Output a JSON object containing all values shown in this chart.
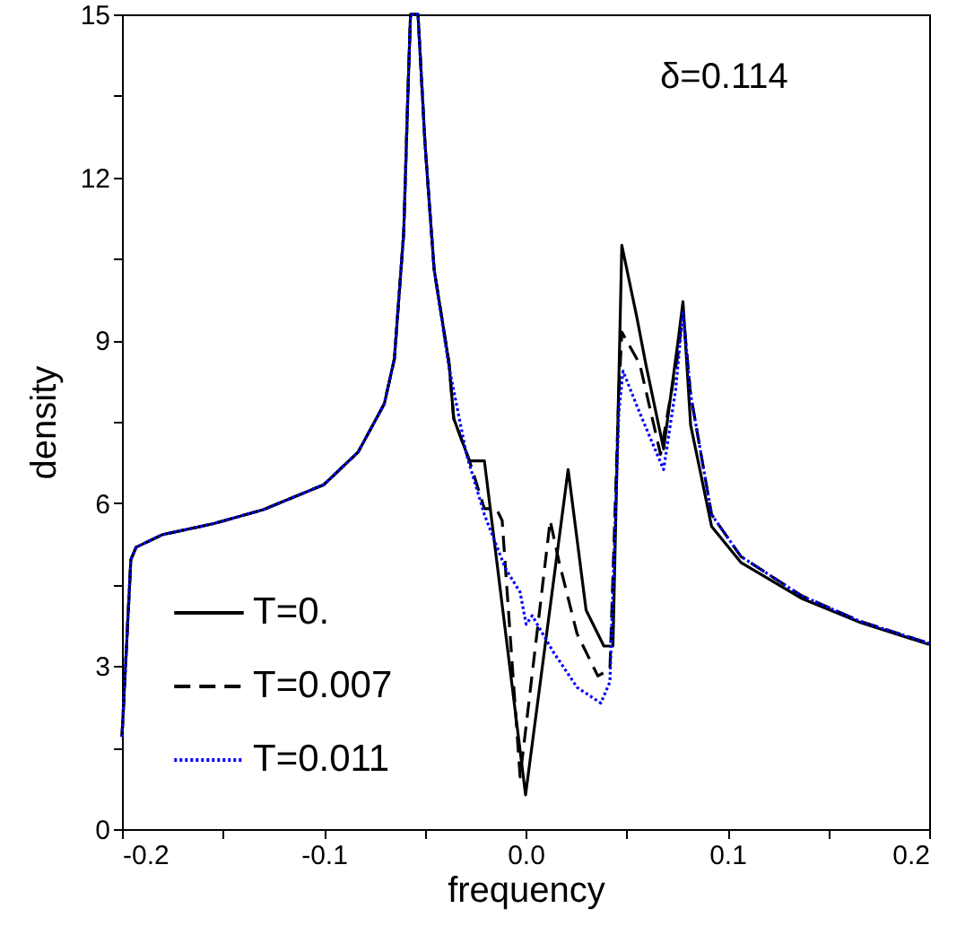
{
  "chart_data": {
    "type": "line",
    "xlabel": "frequency",
    "ylabel": "density",
    "annotations": [
      "δ=0.114"
    ],
    "xlim": [
      -0.2,
      0.2
    ],
    "xticks": [
      -0.2,
      {
        "value": -0.15,
        "label": null
      },
      -0.1,
      {
        "value": -0.05,
        "label": null
      },
      {
        "value": 0,
        "label": "0.0"
      },
      {
        "value": 0.05,
        "label": null
      },
      0.1,
      {
        "value": 0.15,
        "label": null
      },
      0.2
    ],
    "ylim": [
      0,
      15
    ],
    "yticks": [
      0,
      {
        "value": 1.5,
        "label": null
      },
      3,
      {
        "value": 4.5,
        "label": null
      },
      6,
      {
        "value": 7.5,
        "label": null
      },
      9,
      {
        "value": 10.5,
        "label": null
      },
      12,
      {
        "value": 13.5,
        "label": null
      },
      15
    ],
    "grid": false,
    "legend": "bottom left",
    "marker": "none",
    "series": [
      {
        "name": "T=0.",
        "color": "#000000",
        "line_style": "solid",
        "x": [
          -0.2,
          -0.1956,
          -0.193,
          -0.18,
          -0.155,
          -0.13,
          -0.1,
          -0.083,
          -0.07,
          -0.065,
          -0.0604,
          -0.058,
          -0.057,
          -0.0533,
          -0.0498,
          -0.0453,
          -0.038,
          -0.0356,
          -0.0278,
          -0.0204,
          0.0,
          0.0211,
          0.03,
          0.0388,
          0.0433,
          0.0477,
          0.0551,
          0.0596,
          0.0684,
          0.0756,
          0.078,
          0.0818,
          0.0922,
          0.1067,
          0.1366,
          0.1662,
          0.2
        ],
        "values": [
          1.7,
          4.96,
          5.19,
          5.42,
          5.62,
          5.88,
          6.34,
          6.94,
          7.83,
          8.66,
          10.97,
          13.9,
          15,
          15,
          12.6,
          10.3,
          8.6,
          7.56,
          6.78,
          6.78,
          0.63,
          6.62,
          4.03,
          3.37,
          3.37,
          10.75,
          9.43,
          8.56,
          7.0,
          8.99,
          9.71,
          7.44,
          5.57,
          4.91,
          4.25,
          3.8,
          3.4
        ]
      },
      {
        "name": "T=0.007",
        "color": "#000000",
        "line_style": "dashed",
        "x": [
          -0.2,
          -0.1956,
          -0.193,
          -0.18,
          -0.155,
          -0.13,
          -0.1,
          -0.083,
          -0.07,
          -0.065,
          -0.0604,
          -0.058,
          -0.057,
          -0.0533,
          -0.0498,
          -0.0453,
          -0.038,
          -0.0356,
          -0.0278,
          -0.0204,
          -0.0145,
          -0.0116,
          -0.0027,
          0.0122,
          0.0166,
          0.0255,
          0.0358,
          0.0418,
          0.0462,
          0.0477,
          0.0566,
          0.0669,
          0.0756,
          0.078,
          0.0818,
          0.0922,
          0.1067,
          0.1366,
          0.1662,
          0.2
        ],
        "values": [
          1.7,
          4.96,
          5.19,
          5.42,
          5.62,
          5.88,
          6.34,
          6.94,
          7.83,
          8.66,
          10.97,
          13.9,
          15,
          15,
          12.6,
          10.3,
          8.6,
          7.56,
          6.78,
          5.9,
          5.9,
          5.68,
          0.96,
          5.68,
          4.92,
          3.6,
          2.82,
          2.94,
          8.0,
          9.15,
          8.56,
          6.9,
          8.76,
          9.54,
          8.0,
          5.79,
          5.02,
          4.3,
          3.82,
          3.42
        ]
      },
      {
        "name": "T=0.011",
        "color": "#0000ff",
        "line_style": "dotted",
        "x": [
          -0.2,
          -0.1956,
          -0.193,
          -0.18,
          -0.155,
          -0.13,
          -0.1,
          -0.083,
          -0.07,
          -0.065,
          -0.0604,
          -0.058,
          -0.057,
          -0.0533,
          -0.0498,
          -0.0453,
          -0.0382,
          -0.0293,
          -0.0204,
          -0.01,
          -0.0027,
          0.0003,
          0.0033,
          0.0136,
          0.0255,
          0.0373,
          0.0418,
          0.0462,
          0.0483,
          0.0566,
          0.0684,
          0.0744,
          0.078,
          0.0818,
          0.0922,
          0.1067,
          0.1366,
          0.1662,
          0.2
        ],
        "values": [
          1.7,
          4.96,
          5.19,
          5.42,
          5.62,
          5.88,
          6.34,
          6.94,
          7.83,
          8.66,
          10.97,
          13.9,
          15,
          15,
          12.6,
          10.3,
          8.56,
          6.9,
          5.79,
          4.8,
          4.36,
          3.77,
          3.93,
          3.27,
          2.61,
          2.32,
          2.71,
          7.66,
          8.43,
          7.66,
          6.62,
          8.1,
          9.54,
          8.0,
          5.79,
          5.02,
          4.3,
          3.82,
          3.42
        ]
      }
    ]
  }
}
